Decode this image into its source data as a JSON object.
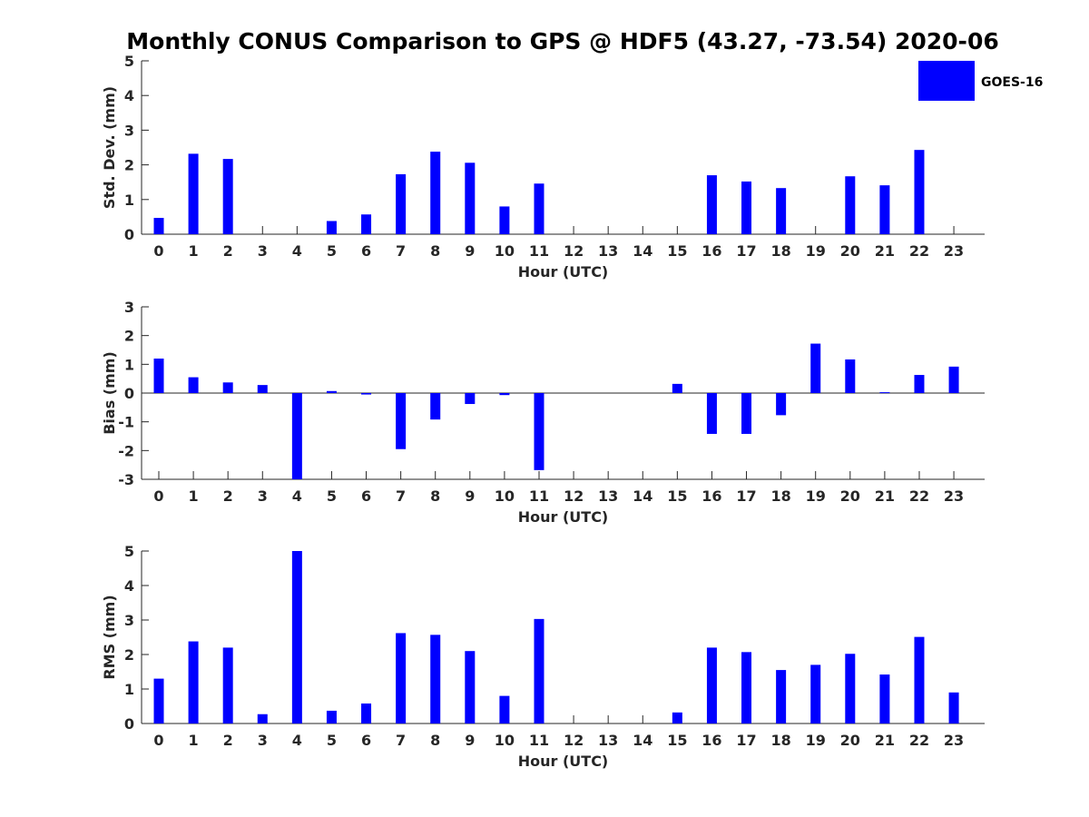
{
  "figure": {
    "title": "Monthly CONUS Comparison to GPS @ HDF5 (43.27, -73.54) 2020-06",
    "legend": {
      "label": "GOES-16",
      "color": "#0000ff"
    },
    "bar_color": "#0000ff"
  },
  "chart_data": [
    {
      "type": "bar",
      "name": "std-dev",
      "xlabel": "Hour (UTC)",
      "ylabel": "Std. Dev. (mm)",
      "ylim": [
        0,
        5
      ],
      "yticks": [
        0,
        1,
        2,
        3,
        4,
        5
      ],
      "categories": [
        "0",
        "1",
        "2",
        "3",
        "4",
        "5",
        "6",
        "7",
        "8",
        "9",
        "10",
        "11",
        "12",
        "13",
        "14",
        "15",
        "16",
        "17",
        "18",
        "19",
        "20",
        "21",
        "22",
        "23"
      ],
      "values": [
        0.47,
        2.32,
        2.17,
        0,
        0,
        0.38,
        0.57,
        1.73,
        2.38,
        2.06,
        0.8,
        1.46,
        0,
        0,
        0,
        0,
        1.7,
        1.52,
        1.33,
        0,
        1.67,
        1.41,
        2.43,
        0
      ],
      "legend": "top-right"
    },
    {
      "type": "bar",
      "name": "bias",
      "xlabel": "Hour (UTC)",
      "ylabel": "Bias (mm)",
      "ylim": [
        -3,
        3
      ],
      "yticks": [
        -3,
        -2,
        -1,
        0,
        1,
        2,
        3
      ],
      "categories": [
        "0",
        "1",
        "2",
        "3",
        "4",
        "5",
        "6",
        "7",
        "8",
        "9",
        "10",
        "11",
        "12",
        "13",
        "14",
        "15",
        "16",
        "17",
        "18",
        "19",
        "20",
        "21",
        "22",
        "23"
      ],
      "values": [
        1.2,
        0.55,
        0.37,
        0.28,
        -3.0,
        0.07,
        -0.05,
        -1.95,
        -0.92,
        -0.38,
        -0.07,
        -2.68,
        0,
        0,
        0,
        0.32,
        -1.42,
        -1.42,
        -0.77,
        1.72,
        1.17,
        0.03,
        0.63,
        0.92
      ]
    },
    {
      "type": "bar",
      "name": "rms",
      "xlabel": "Hour (UTC)",
      "ylabel": "RMS (mm)",
      "ylim": [
        0,
        5
      ],
      "yticks": [
        0,
        1,
        2,
        3,
        4,
        5
      ],
      "categories": [
        "0",
        "1",
        "2",
        "3",
        "4",
        "5",
        "6",
        "7",
        "8",
        "9",
        "10",
        "11",
        "12",
        "13",
        "14",
        "15",
        "16",
        "17",
        "18",
        "19",
        "20",
        "21",
        "22",
        "23"
      ],
      "values": [
        1.3,
        2.38,
        2.2,
        0.27,
        5.0,
        0.37,
        0.58,
        2.62,
        2.57,
        2.1,
        0.8,
        3.03,
        0,
        0,
        0,
        0.32,
        2.2,
        2.07,
        1.55,
        1.7,
        2.02,
        1.42,
        2.51,
        0.9
      ]
    }
  ]
}
